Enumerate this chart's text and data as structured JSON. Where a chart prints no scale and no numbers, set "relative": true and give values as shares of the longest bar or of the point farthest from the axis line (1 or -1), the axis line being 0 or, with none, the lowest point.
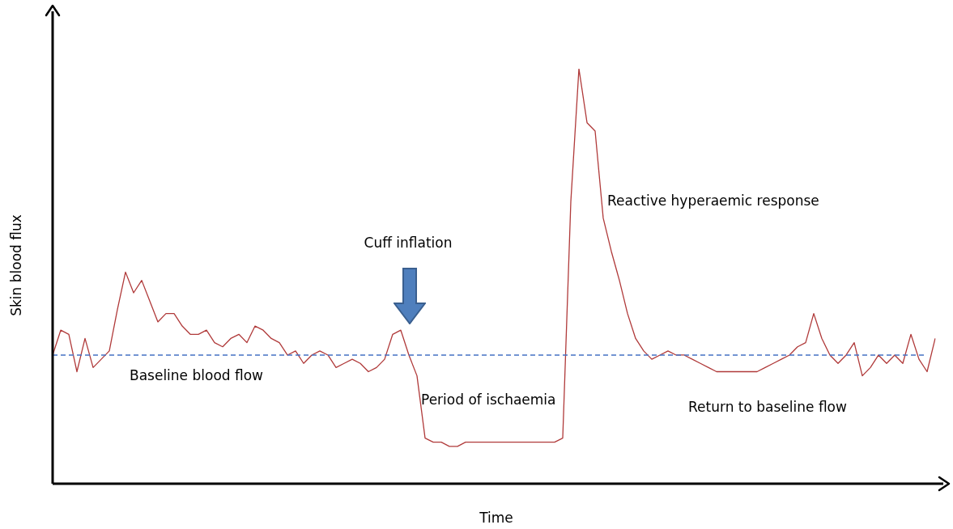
{
  "chart_data": {
    "type": "line",
    "relative": true,
    "xlabel": "Time",
    "ylabel": "Skin blood flux",
    "categories": [
      null,
      null,
      null,
      null,
      null,
      null,
      null,
      null,
      null,
      null,
      null,
      null,
      null,
      null,
      null,
      null,
      null,
      null,
      null,
      null,
      null,
      null,
      null,
      null,
      null,
      null,
      null,
      null,
      null,
      null,
      null,
      null,
      null,
      null,
      null,
      null,
      null,
      null,
      null,
      null,
      null,
      null,
      null,
      null,
      null,
      null,
      null,
      null,
      null,
      null,
      null,
      null,
      null,
      null,
      null,
      null,
      null,
      null,
      null,
      null,
      null,
      null,
      null,
      null,
      null,
      null,
      null,
      null,
      null,
      null,
      null,
      null,
      null,
      null,
      null,
      null,
      null,
      null,
      null,
      null,
      null,
      null,
      null,
      null,
      null,
      null,
      null,
      null,
      null,
      null,
      null,
      null,
      null,
      null,
      null,
      null,
      null,
      null,
      null,
      null,
      null,
      null,
      null,
      null,
      null,
      null,
      null,
      null,
      null,
      null
    ],
    "series": [
      {
        "color": "#b03a3a",
        "values": [
          0.31,
          0.37,
          0.36,
          0.27,
          0.35,
          0.28,
          0.3,
          0.32,
          0.42,
          0.51,
          0.46,
          0.49,
          0.44,
          0.39,
          0.41,
          0.41,
          0.38,
          0.36,
          0.36,
          0.37,
          0.34,
          0.33,
          0.35,
          0.36,
          0.34,
          0.38,
          0.37,
          0.35,
          0.34,
          0.31,
          0.32,
          0.29,
          0.31,
          0.32,
          0.31,
          0.28,
          0.29,
          0.3,
          0.29,
          0.27,
          0.28,
          0.3,
          0.36,
          0.37,
          0.31,
          0.26,
          0.11,
          0.1,
          0.1,
          0.09,
          0.09,
          0.1,
          0.1,
          0.1,
          0.1,
          0.1,
          0.1,
          0.1,
          0.1,
          0.1,
          0.1,
          0.1,
          0.1,
          0.11,
          0.68,
          1,
          0.87,
          0.85,
          0.64,
          0.56,
          0.49,
          0.41,
          0.35,
          0.32,
          0.3,
          0.31,
          0.32,
          0.31,
          0.31,
          0.3,
          0.29,
          0.28,
          0.27,
          0.27,
          0.27,
          0.27,
          0.27,
          0.27,
          0.28,
          0.29,
          0.3,
          0.31,
          0.33,
          0.34,
          0.41,
          0.35,
          0.31,
          0.29,
          0.31,
          0.34,
          0.26,
          0.28,
          0.31,
          0.29,
          0.31,
          0.29,
          0.36,
          0.3,
          0.27,
          0.35
        ]
      }
    ],
    "ref_lines": [
      {
        "axis": "y",
        "value": 0.31,
        "color": "#4472c4",
        "line_style": "dashed"
      }
    ],
    "annotations": [
      "Cuff inflation",
      "Baseline blood flow",
      "Period of ischaemia",
      "Reactive hyperaemic response",
      "Return to baseline flow"
    ],
    "marker": "none",
    "line_style": "solid",
    "legend": false
  }
}
